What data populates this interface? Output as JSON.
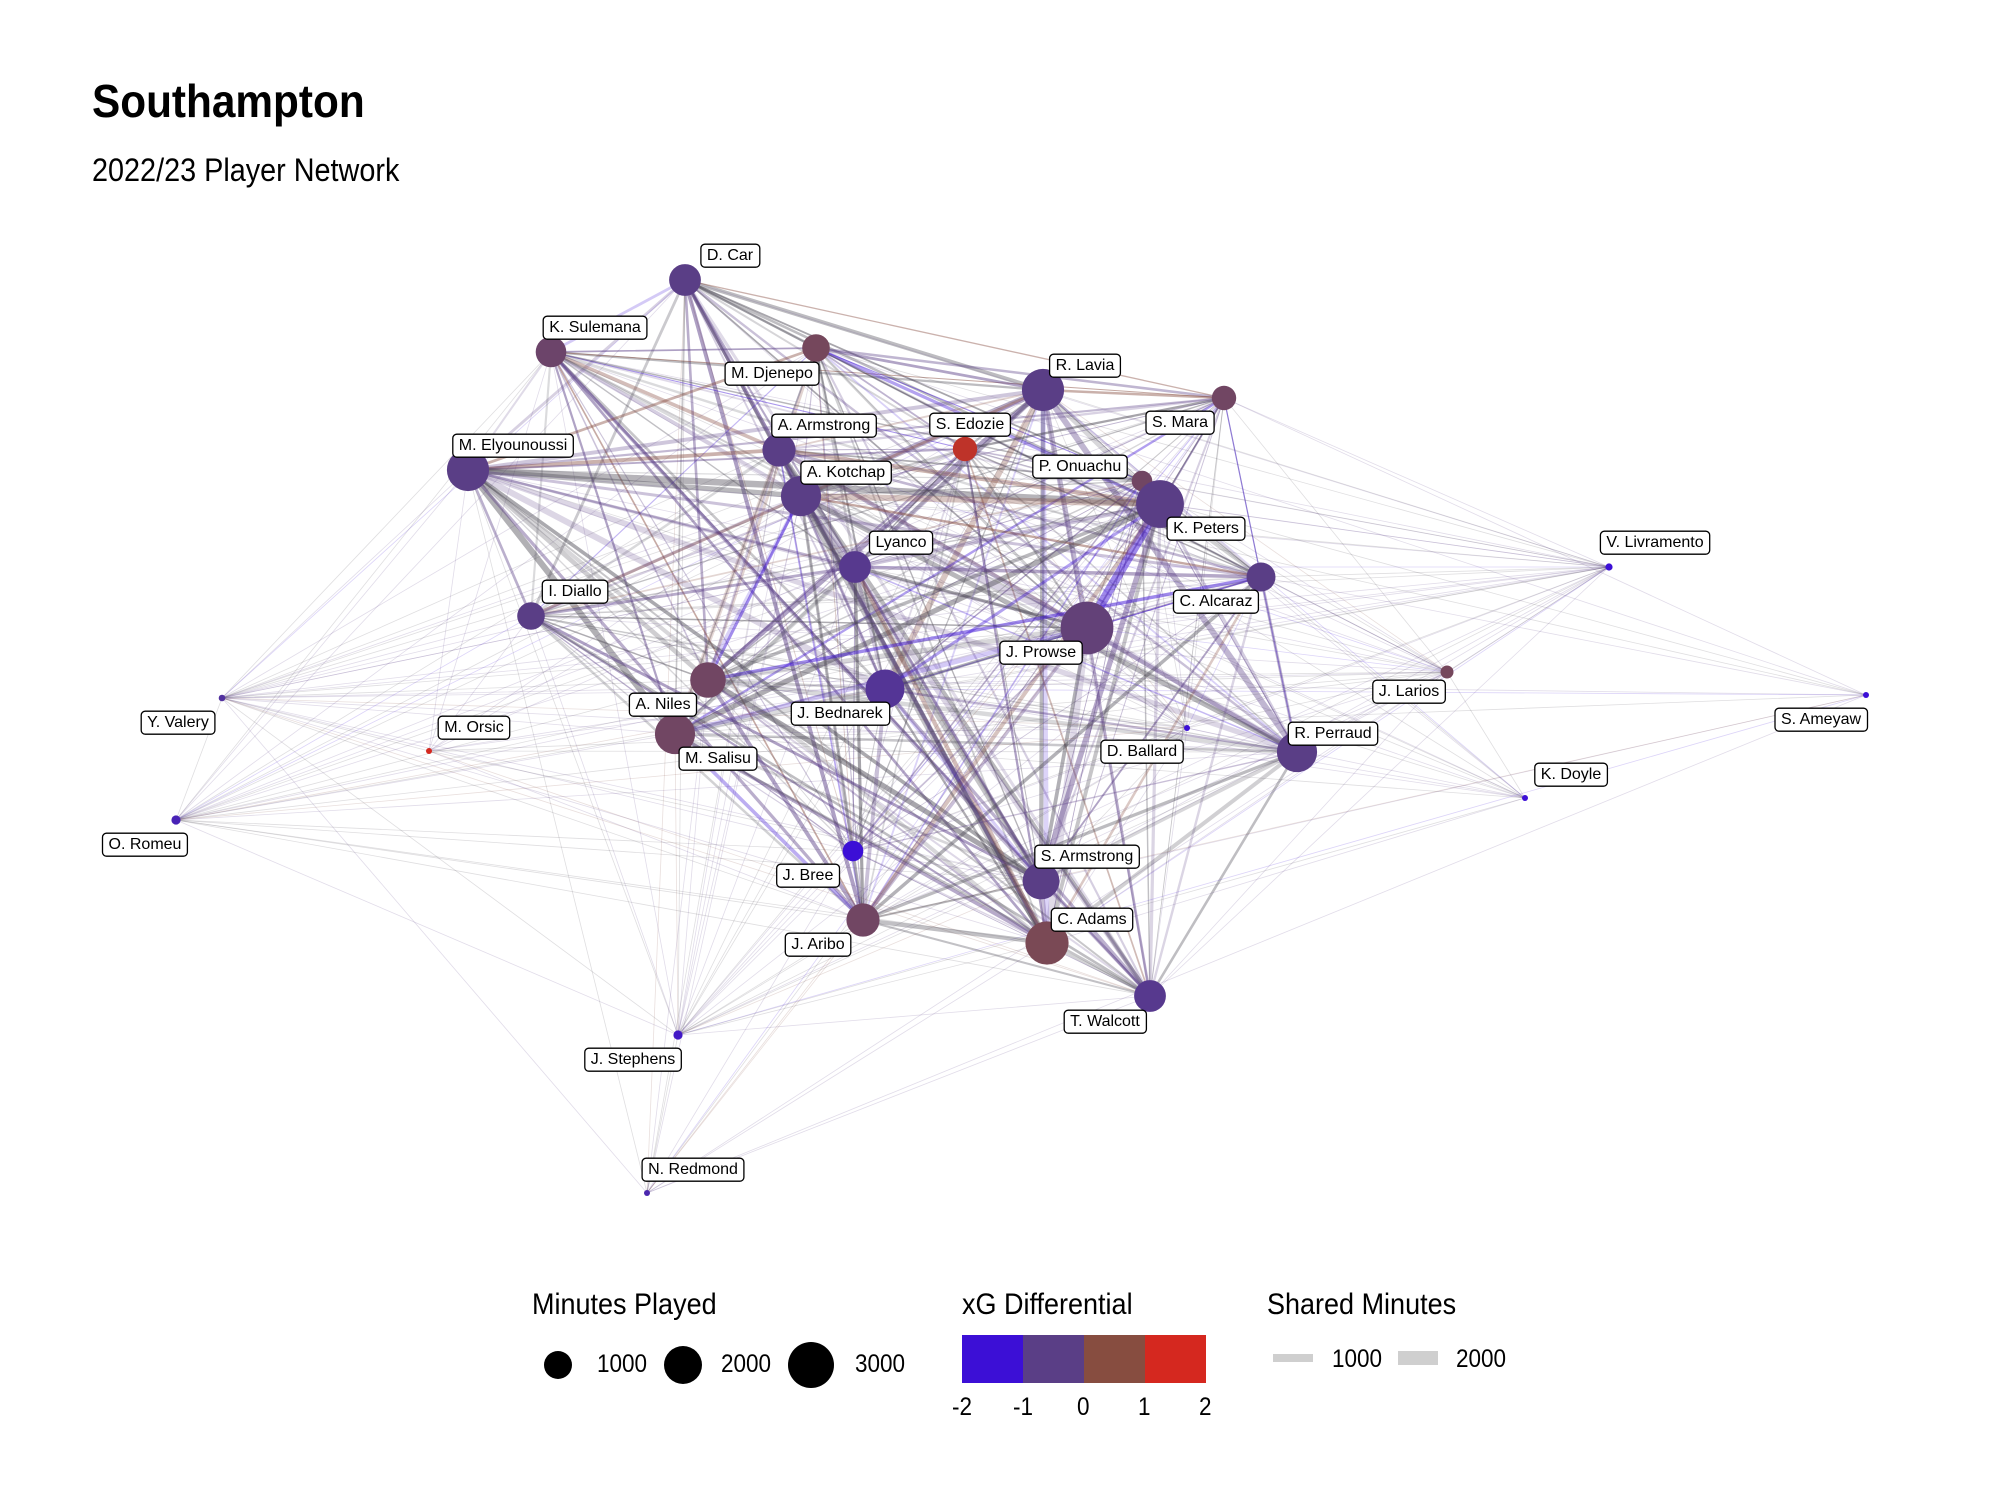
{
  "title": "Southampton",
  "subtitle": "2022/23 Player Network",
  "colors": {
    "neg2": "#3c0fd6",
    "neg1": "#5a3e86",
    "zero": "#874d40",
    "pos1": "#c42a22",
    "pos2": "#d5281f",
    "neutral": "#4d4a55",
    "edge_gray": "#a9a9ad"
  },
  "players": [
    {
      "name": "D. Car",
      "minutes": 1200,
      "xg": -1.0
    },
    {
      "name": "K. Sulemana",
      "minutes": 1100,
      "xg": -0.6
    },
    {
      "name": "M. Djenepo",
      "minutes": 900,
      "xg": -0.4
    },
    {
      "name": "R. Lavia",
      "minutes": 2100,
      "xg": -1.0
    },
    {
      "name": "S. Mara",
      "minutes": 700,
      "xg": -0.5
    },
    {
      "name": "A. Armstrong",
      "minutes": 1300,
      "xg": -1.0
    },
    {
      "name": "S. Edozie",
      "minutes": 700,
      "xg": 0.7
    },
    {
      "name": "M. Elyounoussi",
      "minutes": 2100,
      "xg": -1.0
    },
    {
      "name": "P. Onuachu",
      "minutes": 500,
      "xg": -0.5
    },
    {
      "name": "A. Kotchap",
      "minutes": 1900,
      "xg": -1.0
    },
    {
      "name": "K. Peters",
      "minutes": 2700,
      "xg": -1.0
    },
    {
      "name": "Lyanco",
      "minutes": 1200,
      "xg": -1.1
    },
    {
      "name": "V. Livramento",
      "minutes": 60,
      "xg": -2.0
    },
    {
      "name": "C. Alcaraz",
      "minutes": 1000,
      "xg": -1.0
    },
    {
      "name": "I. Diallo",
      "minutes": 900,
      "xg": -1.0
    },
    {
      "name": "J. Prowse",
      "minutes": 3300,
      "xg": -0.8
    },
    {
      "name": "J. Larios",
      "minutes": 200,
      "xg": -0.4
    },
    {
      "name": "Y. Valery",
      "minutes": 50,
      "xg": -1.3
    },
    {
      "name": "A. Niles",
      "minutes": 1500,
      "xg": -0.5
    },
    {
      "name": "J. Bednarek",
      "minutes": 1800,
      "xg": -1.2
    },
    {
      "name": "M. Orsic",
      "minutes": 20,
      "xg": 2.0
    },
    {
      "name": "M. Salisu",
      "minutes": 1900,
      "xg": -0.5
    },
    {
      "name": "D. Ballard",
      "minutes": 40,
      "xg": -2.0
    },
    {
      "name": "R. Perraud",
      "minutes": 1900,
      "xg": -1.0
    },
    {
      "name": "S. Ameyaw",
      "minutes": 20,
      "xg": -2.0
    },
    {
      "name": "K. Doyle",
      "minutes": 20,
      "xg": -2.0
    },
    {
      "name": "O. Romeu",
      "minutes": 100,
      "xg": -1.6
    },
    {
      "name": "J. Bree",
      "minutes": 500,
      "xg": -2.0
    },
    {
      "name": "S. Armstrong",
      "minutes": 1600,
      "xg": -1.0
    },
    {
      "name": "J. Aribo",
      "minutes": 1300,
      "xg": -0.5
    },
    {
      "name": "C. Adams",
      "minutes": 2200,
      "xg": -0.3
    },
    {
      "name": "T. Walcott",
      "minutes": 1200,
      "xg": -1.1
    },
    {
      "name": "J. Stephens",
      "minutes": 100,
      "xg": -1.8
    },
    {
      "name": "N. Redmond",
      "minutes": 10,
      "xg": -1.5
    }
  ],
  "legend": {
    "minutes_title": "Minutes Played",
    "minutes_items": [
      {
        "label": "1000",
        "value": 1000
      },
      {
        "label": "2000",
        "value": 2000
      },
      {
        "label": "3000",
        "value": 3000
      }
    ],
    "xg_title": "xG Differential",
    "xg_ticks": [
      "-2",
      "-1",
      "0",
      "1",
      "2"
    ],
    "shared_title": "Shared Minutes",
    "shared_items": [
      {
        "label": "1000",
        "value": 1000
      },
      {
        "label": "2000",
        "value": 2000
      }
    ]
  }
}
